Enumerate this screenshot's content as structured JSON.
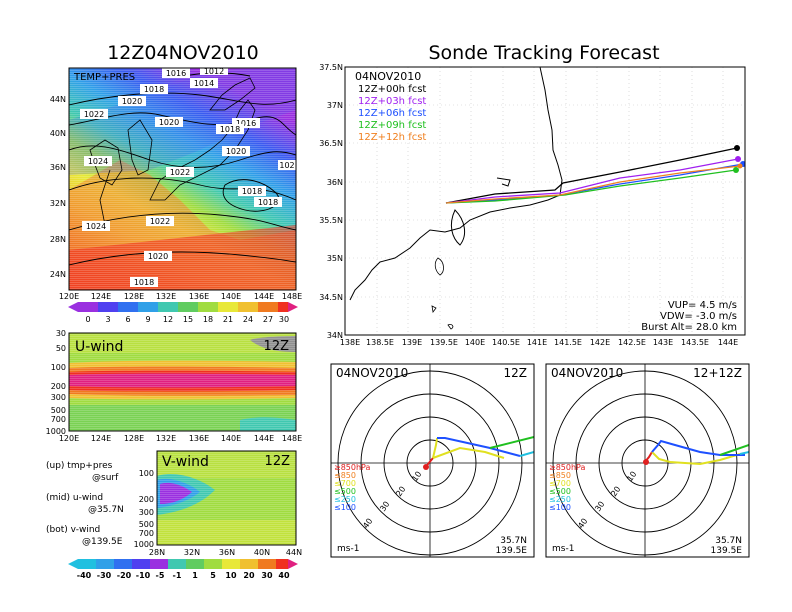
{
  "titles": {
    "left": "12Z04NOV2010",
    "right": "Sonde Tracking Forecast"
  },
  "panel_tp": {
    "label": "TEMP+PRES",
    "x_ticks": [
      "120E",
      "124E",
      "128E",
      "132E",
      "136E",
      "140E",
      "144E",
      "148E"
    ],
    "y_ticks": [
      "44N",
      "40N",
      "36N",
      "32N",
      "28N",
      "24N"
    ],
    "isobar_labels": [
      "1016",
      "1014",
      "1018",
      "1012",
      "1020",
      "1022",
      "1020",
      "1016",
      "1018",
      "1020",
      "1024",
      "1022",
      "1018",
      "1018",
      "102",
      "1022",
      "1024",
      "1020",
      "1018"
    ],
    "colorbar": [
      "0",
      "3",
      "6",
      "9",
      "12",
      "15",
      "18",
      "21",
      "24",
      "27",
      "30"
    ]
  },
  "panel_u": {
    "label": "U-wind",
    "time": "12Z",
    "y_ticks": [
      "30",
      "50",
      "100",
      "200",
      "300",
      "500",
      "700",
      "1000"
    ],
    "x_ticks": [
      "120E",
      "124E",
      "128E",
      "132E",
      "136E",
      "140E",
      "144E",
      "148E"
    ]
  },
  "panel_v": {
    "label": "V-wind",
    "time": "12Z",
    "y_ticks": [
      "100",
      "200",
      "300",
      "500",
      "700",
      "1000"
    ],
    "x_ticks": [
      "28N",
      "32N",
      "36N",
      "40N",
      "44N"
    ],
    "colorbar": [
      "-40",
      "-30",
      "-20",
      "-10",
      "-5",
      "-1",
      "1",
      "5",
      "10",
      "20",
      "30",
      "40"
    ]
  },
  "legend_text": {
    "up": "(up) tmp+pres",
    "up2": "@surf",
    "mid": "(mid) u-wind",
    "mid2": "@35.7N",
    "bot": "(bot) v-wind",
    "bot2": "@139.5E"
  },
  "track": {
    "date": "04NOV2010",
    "forecasts": [
      {
        "label": "12Z+00h  fcst",
        "color": "#000000"
      },
      {
        "label": "12Z+03h  fcst",
        "color": "#a020f0"
      },
      {
        "label": "12Z+06h  fcst",
        "color": "#1e50ff"
      },
      {
        "label": "12Z+09h  fcst",
        "color": "#20c020"
      },
      {
        "label": "12Z+12h  fcst",
        "color": "#f08020"
      }
    ],
    "x_ticks": [
      "138E",
      "138.5E",
      "139E",
      "139.5E",
      "140E",
      "140.5E",
      "141E",
      "141.5E",
      "142E",
      "142.5E",
      "143E",
      "143.5E",
      "144E"
    ],
    "y_ticks": [
      "37.5N",
      "37N",
      "36.5N",
      "36N",
      "35.5N",
      "35N",
      "34.5N",
      "34N"
    ],
    "vup": "VUP=  4.5  m/s",
    "vdw": "VDW=  -3.0  m/s",
    "burst": "Burst Alt=  28.0  km"
  },
  "hodo_left": {
    "date": "04NOV2010",
    "time": "12Z",
    "rings": [
      "10",
      "20",
      "30",
      "40"
    ],
    "levels": [
      "≥850hPa",
      "≤850",
      "≤700",
      "≤500",
      "≤250",
      "≤100"
    ],
    "units": "ms-1",
    "lat": "35.7N",
    "lon": "139.5E"
  },
  "hodo_right": {
    "date": "04NOV2010",
    "time": "12+12Z",
    "rings": [
      "10",
      "20",
      "30",
      "40"
    ],
    "levels": [
      "≥850hPa",
      "≤850",
      "≤700",
      "≤500",
      "≤250",
      "≤100"
    ],
    "units": "ms-1",
    "lat": "35.7N",
    "lon": "139.5E"
  },
  "level_colors": [
    "#e02020",
    "#f08020",
    "#e0e020",
    "#20c020",
    "#20c0e0",
    "#1e50ff"
  ]
}
